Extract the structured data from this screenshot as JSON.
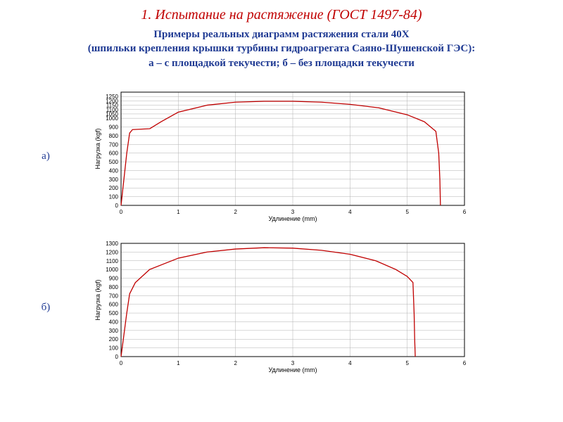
{
  "title": "1. Испытание на растяжение (ГОСТ 1497-84)",
  "subtitle_line1": "Примеры реальных диаграмм растяжения стали 40Х",
  "subtitle_line2": "(шпильки крепления крышки турбины гидроагрегата Саяно-Шушенской ГЭС):",
  "subtitle_line3": "а – с площадкой текучести; б – без площадки текучести",
  "charts": {
    "a": {
      "label": "а)",
      "type": "line",
      "xlabel": "Удлинение (mm)",
      "ylabel": "Нагрузка (kgf)",
      "xlim": [
        0,
        6
      ],
      "ylim": [
        0,
        1300
      ],
      "xtick_step": 1,
      "yticks": [
        0,
        100,
        200,
        300,
        400,
        500,
        600,
        700,
        800,
        900,
        1000,
        1050,
        1100,
        1150,
        1200,
        1250
      ],
      "grid_color": "#b0b0b0",
      "line_color": "#c00000",
      "line_width": 1.3,
      "background_color": "#ffffff",
      "inner_border_color": "#000000",
      "label_fontsize": 9,
      "tick_fontsize": 8,
      "series": [
        {
          "x": 0.0,
          "y": 0
        },
        {
          "x": 0.05,
          "y": 300
        },
        {
          "x": 0.1,
          "y": 600
        },
        {
          "x": 0.15,
          "y": 830
        },
        {
          "x": 0.2,
          "y": 870
        },
        {
          "x": 0.35,
          "y": 875
        },
        {
          "x": 0.5,
          "y": 880
        },
        {
          "x": 0.7,
          "y": 960
        },
        {
          "x": 1.0,
          "y": 1070
        },
        {
          "x": 1.5,
          "y": 1150
        },
        {
          "x": 2.0,
          "y": 1185
        },
        {
          "x": 2.5,
          "y": 1195
        },
        {
          "x": 3.0,
          "y": 1195
        },
        {
          "x": 3.5,
          "y": 1185
        },
        {
          "x": 4.0,
          "y": 1160
        },
        {
          "x": 4.5,
          "y": 1120
        },
        {
          "x": 5.0,
          "y": 1040
        },
        {
          "x": 5.3,
          "y": 960
        },
        {
          "x": 5.5,
          "y": 850
        },
        {
          "x": 5.55,
          "y": 600
        },
        {
          "x": 5.57,
          "y": 300
        },
        {
          "x": 5.58,
          "y": 0
        }
      ]
    },
    "b": {
      "label": "б)",
      "type": "line",
      "xlabel": "Удлинение (mm)",
      "ylabel": "Нагрузка (kgf)",
      "xlim": [
        0,
        6
      ],
      "ylim": [
        0,
        1300
      ],
      "xtick_step": 1,
      "ytick_step": 100,
      "grid_color": "#b0b0b0",
      "line_color": "#c00000",
      "line_width": 1.3,
      "background_color": "#ffffff",
      "inner_border_color": "#000000",
      "label_fontsize": 9,
      "tick_fontsize": 8,
      "series": [
        {
          "x": 0.0,
          "y": 0
        },
        {
          "x": 0.05,
          "y": 250
        },
        {
          "x": 0.1,
          "y": 500
        },
        {
          "x": 0.15,
          "y": 720
        },
        {
          "x": 0.25,
          "y": 850
        },
        {
          "x": 0.5,
          "y": 1000
        },
        {
          "x": 1.0,
          "y": 1130
        },
        {
          "x": 1.5,
          "y": 1200
        },
        {
          "x": 2.0,
          "y": 1235
        },
        {
          "x": 2.5,
          "y": 1250
        },
        {
          "x": 3.0,
          "y": 1245
        },
        {
          "x": 3.5,
          "y": 1220
        },
        {
          "x": 4.0,
          "y": 1175
        },
        {
          "x": 4.45,
          "y": 1100
        },
        {
          "x": 4.8,
          "y": 1000
        },
        {
          "x": 5.0,
          "y": 920
        },
        {
          "x": 5.1,
          "y": 850
        },
        {
          "x": 5.12,
          "y": 500
        },
        {
          "x": 5.13,
          "y": 200
        },
        {
          "x": 5.14,
          "y": 0
        }
      ]
    }
  }
}
